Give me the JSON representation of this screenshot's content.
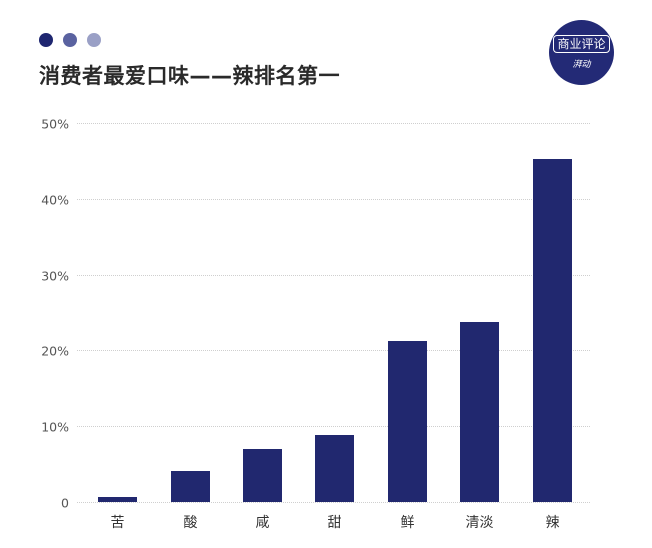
{
  "header": {
    "dots": [
      "#1e2670",
      "#5a62a0",
      "#9aa0c6"
    ],
    "title": "消费者最爱口味——辣排名第一"
  },
  "logo": {
    "main": "商业评论",
    "sub": "湃动",
    "bg": "#232a76"
  },
  "colors": {
    "bar": "#21286f",
    "grid": "#cfcfcf",
    "axis_text": "#555555"
  },
  "chart_data": {
    "type": "bar",
    "title": "消费者最爱口味——辣排名第一",
    "xlabel": "",
    "ylabel": "",
    "categories": [
      "苦",
      "酸",
      "咸",
      "甜",
      "鲜",
      "清淡",
      "辣"
    ],
    "values": [
      0.7,
      4.1,
      7.0,
      8.8,
      21.2,
      23.7,
      45.2
    ],
    "unit": "%",
    "ylim": [
      0,
      50
    ],
    "yticks": [
      0,
      10,
      20,
      30,
      40,
      50
    ],
    "ytick_labels": [
      "0",
      "10%",
      "20%",
      "30%",
      "40%",
      "50%"
    ],
    "grid": "horizontal dotted",
    "legend": null
  }
}
